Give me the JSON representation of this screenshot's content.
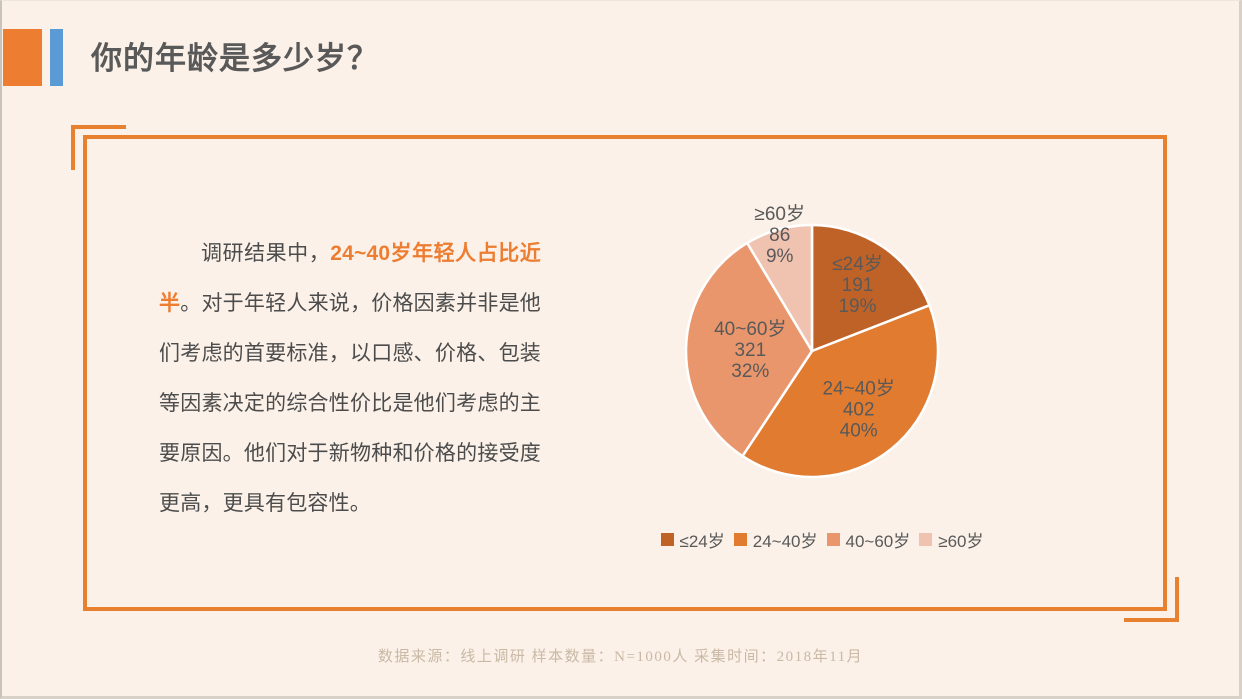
{
  "slide": {
    "title": "你的年龄是多少岁？",
    "accent_colors": {
      "orange": "#ED7D31",
      "blue": "#5B9BD5"
    },
    "frame_color": "#E8812F",
    "background_color": "#FBF1E8"
  },
  "paragraph": {
    "segments": [
      {
        "style": "normal",
        "text": "调研结果中，"
      },
      {
        "style": "highlight",
        "text": "24~40岁年轻人占比近半"
      },
      {
        "style": "normal",
        "text": "。对于年轻人来说，价格因素并非是他们考虑的首要标准，以口感、价格、包装等因素决定的综合性价比是他们考虑的主要原因。他们对于新物种和价格的接受度更高，更具有包容性。"
      }
    ]
  },
  "chart_data": {
    "type": "pie",
    "title": "",
    "direction": "clockwise",
    "start_angle_deg": 0,
    "total": 1000,
    "slices": [
      {
        "label": "≤24岁",
        "value": 191,
        "pct": "19%",
        "color": "#BF6228",
        "label_r": 0.64
      },
      {
        "label": "24~40岁",
        "value": 402,
        "pct": "40%",
        "color": "#E07B30",
        "label_r": 0.59
      },
      {
        "label": "40~60岁",
        "value": 321,
        "pct": "32%",
        "color": "#E9966C",
        "label_r": 0.49
      },
      {
        "label": "≥60岁",
        "value": 86,
        "pct": "9%",
        "color": "#F0C3B1",
        "label_r": 0.96
      }
    ],
    "separator_color": "#FFFFFF",
    "label_color": "#595959",
    "legend_position": "bottom",
    "legend_entries": [
      "≤24岁",
      "24~40岁",
      "40~60岁",
      "≥60岁"
    ]
  },
  "footer": {
    "text": "数据来源：线上调研 样本数量：N=1000人 采集时间：2018年11月"
  }
}
